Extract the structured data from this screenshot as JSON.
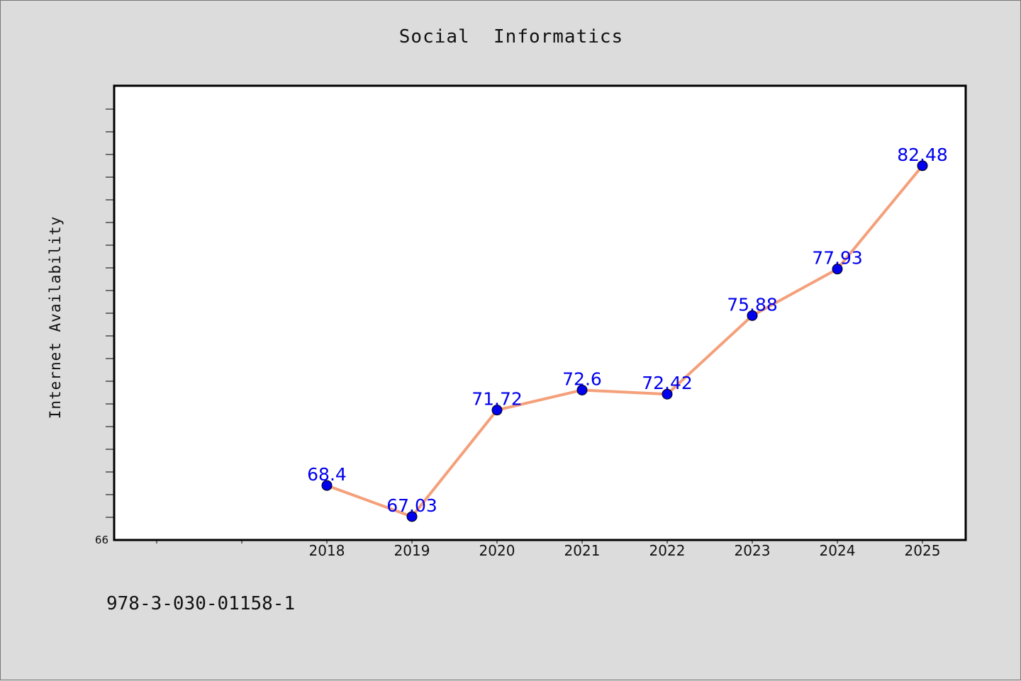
{
  "chart_data": {
    "type": "line",
    "title": "Social  Informatics",
    "xlabel": "",
    "ylabel": "Internet Availability",
    "x": [
      "2018",
      "2019",
      "2020",
      "2021",
      "2022",
      "2023",
      "2024",
      "2025"
    ],
    "series": [
      {
        "values": [
          68.4,
          67.03,
          71.72,
          72.6,
          72.42,
          75.88,
          77.93,
          82.48
        ],
        "labels": [
          "68.4",
          "67.03",
          "71.72",
          "72.6",
          "72.42",
          "75.88",
          "77.93",
          "82.48"
        ]
      }
    ],
    "ylim": [
      66,
      86
    ],
    "y_tick_label": "66",
    "line_color": "#f4a07a",
    "marker_color": "#0000ee",
    "label_color": "#0000ee",
    "grid": false,
    "legend": "none"
  },
  "footer": {
    "isbn": "978-3-030-01158-1"
  }
}
